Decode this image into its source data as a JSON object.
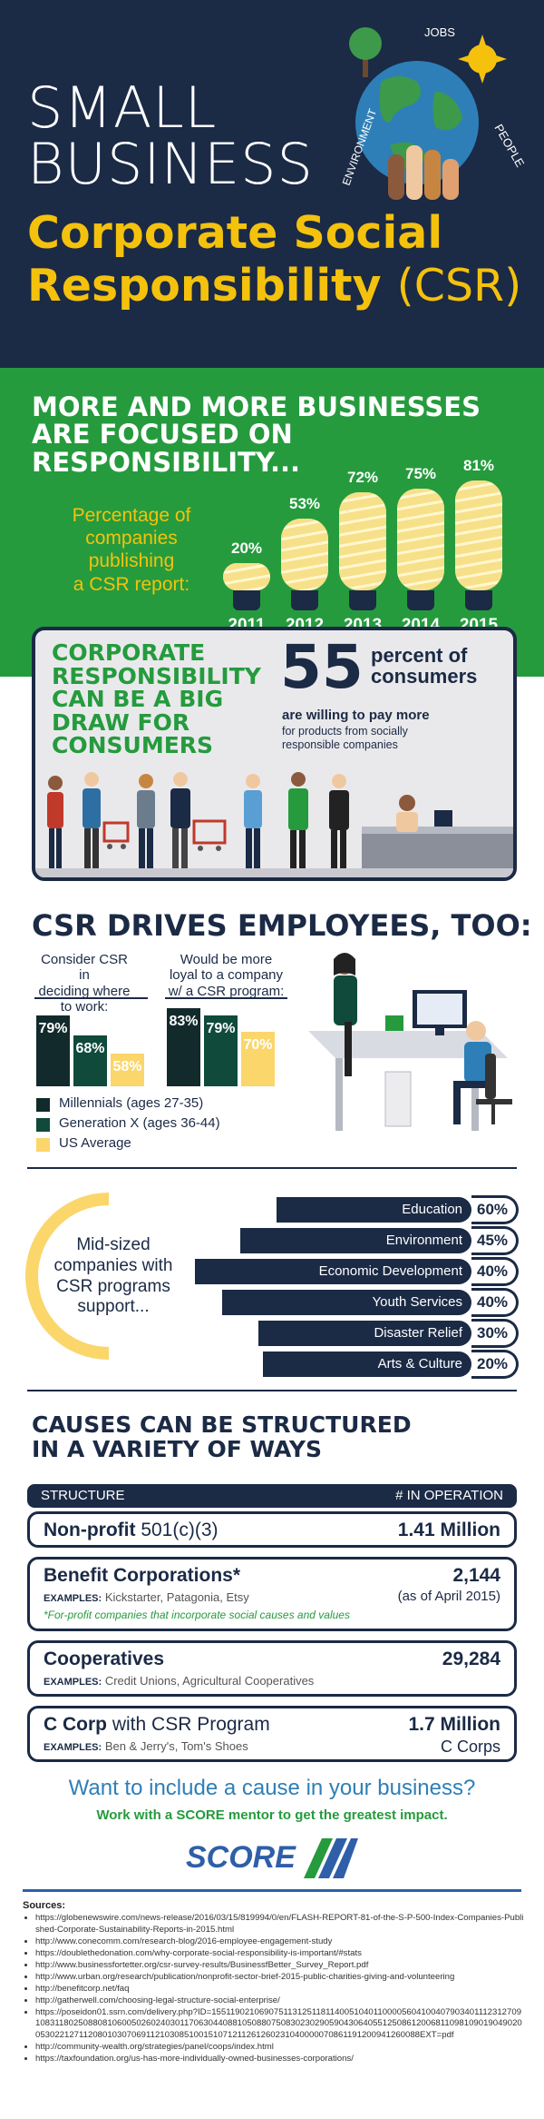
{
  "header": {
    "line1": "SMALL",
    "line2": "BUSINESS",
    "csr_line1": "Corporate Social",
    "csr_line2": "Responsibility",
    "csr_abbr": "(CSR)",
    "globe_labels": [
      "JOBS",
      "PEOPLE",
      "ENVIRONMENT"
    ]
  },
  "growth": {
    "headline": [
      "MORE AND MORE BUSINESSES",
      "ARE FOCUSED ON",
      "RESPONSIBILITY..."
    ],
    "caption": [
      "Percentage of",
      "companies publishing",
      "a CSR report:"
    ]
  },
  "consumers": {
    "headline": [
      "CORPORATE",
      "RESPONSIBILITY",
      "CAN BE A BIG",
      "DRAW FOR",
      "CONSUMERS"
    ],
    "stat_number": "55",
    "stat_unit_1": "percent of",
    "stat_unit_2": "consumers",
    "stat_bold": "are willing to pay more",
    "stat_rest_1": "for products from socially",
    "stat_rest_2": "responsible companies"
  },
  "employees": {
    "title": "CSR DRIVES EMPLOYEES, TOO:",
    "group1_label": [
      "Consider CSR in",
      "deciding where",
      "to work:"
    ],
    "group2_label": [
      "Would be more",
      "loyal to a company",
      "w/ a CSR program:"
    ],
    "legend": [
      "Millennials (ages 27-35)",
      "Generation X (ages 36-44)",
      "US Average"
    ]
  },
  "support": {
    "circle_text": [
      "Mid-sized",
      "companies with",
      "CSR programs",
      "support..."
    ]
  },
  "causes": {
    "title": [
      "CAUSES CAN BE STRUCTURED",
      "IN A VARIETY OF WAYS"
    ],
    "col_structure": "STRUCTURE",
    "col_operation": "# IN OPERATION",
    "rows": [
      {
        "name": "Non-profit",
        "name_light": "501(c)(3)",
        "value": "1.41 Million"
      },
      {
        "name": "Benefit Corporations*",
        "examples_label": "EXAMPLES:",
        "examples": "Kickstarter, Patagonia, Etsy",
        "note": "*For-profit companies that incorporate social causes and values",
        "value": "2,144",
        "sub": "(as of April 2015)"
      },
      {
        "name": "Cooperatives",
        "examples_label": "EXAMPLES:",
        "examples": "Credit Unions, Agricultural Cooperatives",
        "value": "29,284"
      },
      {
        "name": "C Corp",
        "name_light": "with CSR Program",
        "examples_label": "EXAMPLES:",
        "examples": "Ben & Jerry's, Tom's Shoes",
        "value": "1.7 Million",
        "sub": "C Corps"
      }
    ]
  },
  "cta": {
    "line1": "Want to include a cause in your business?",
    "line2": "Work with a SCORE mentor to get the greatest impact.",
    "logo": "SCORE"
  },
  "sources": {
    "title": "Sources:",
    "items": [
      "https://globenewswire.com/news-release/2016/03/15/819994/0/en/FLASH-REPORT-81-of-the-S-P-500-Index-Companies-Published-Corporate-Sustainability-Reports-in-2015.html",
      "http://www.conecomm.com/research-blog/2016-employee-engagement-study",
      "https://doublethedonation.com/why-corporate-social-responsibility-is-important/#stats",
      "http://www.businessfortetter.org/csr-survey-results/BusinessfBetter_Survey_Report.pdf",
      "http://www.urban.org/research/publication/nonprofit-sector-brief-2015-public-charities-giving-and-volunteering",
      "http://benefitcorp.net/faq",
      "http://gatherwell.com/choosing-legal-structure-social-enterprise/",
      "https://poseidon01.ssrn.com/delivery.php?ID=155119021069075113125118114005104011000056041004079034011123127091083118025088081060050260240301170630440881050880750830230290590430640551250861200681109810901904902005302212711208010307069112103085100151071211261260231040000070861191200941260088EXT=pdf",
      "http://community-wealth.org/strategies/panel/coops/index.html",
      "https://taxfoundation.org/us-has-more-individually-owned-businesses-corporations/"
    ]
  },
  "colors": {
    "navy": "#1b2a45",
    "green": "#259b3d",
    "dark_green": "#0f4a3b",
    "yellow": "#f4c20d",
    "light_yellow": "#fbd66b"
  },
  "chart_data": [
    {
      "type": "bar",
      "title": "Percentage of companies publishing a CSR report:",
      "categories": [
        "2011",
        "2012",
        "2013",
        "2014",
        "2015"
      ],
      "values": [
        20,
        53,
        72,
        75,
        81
      ],
      "labels": [
        "20%",
        "53%",
        "72%",
        "75%",
        "81%"
      ],
      "unit": "%"
    },
    {
      "type": "bar",
      "categories": [
        "Consider CSR in deciding where to work:",
        "Would be more loyal to a company w/ a CSR program:"
      ],
      "series": [
        {
          "name": "Millennials (ages 27-35)",
          "values": [
            79,
            83
          ],
          "labels": [
            "79%",
            "83%"
          ],
          "color": "#132a2c"
        },
        {
          "name": "Generation X (ages 36-44)",
          "values": [
            68,
            79
          ],
          "labels": [
            "68%",
            "79%"
          ],
          "color": "#0f4a3b"
        },
        {
          "name": "US Average",
          "values": [
            58,
            70
          ],
          "labels": [
            "58%",
            "70%"
          ],
          "color": "#fbd66b"
        }
      ]
    },
    {
      "type": "bar",
      "orientation": "horizontal",
      "categories": [
        "Education",
        "Environment",
        "Economic Development",
        "Youth Services",
        "Disaster Relief",
        "Arts & Culture"
      ],
      "values": [
        60,
        45,
        40,
        40,
        30,
        20
      ],
      "labels": [
        "60%",
        "45%",
        "40%",
        "40%",
        "30%",
        "20%"
      ]
    }
  ]
}
